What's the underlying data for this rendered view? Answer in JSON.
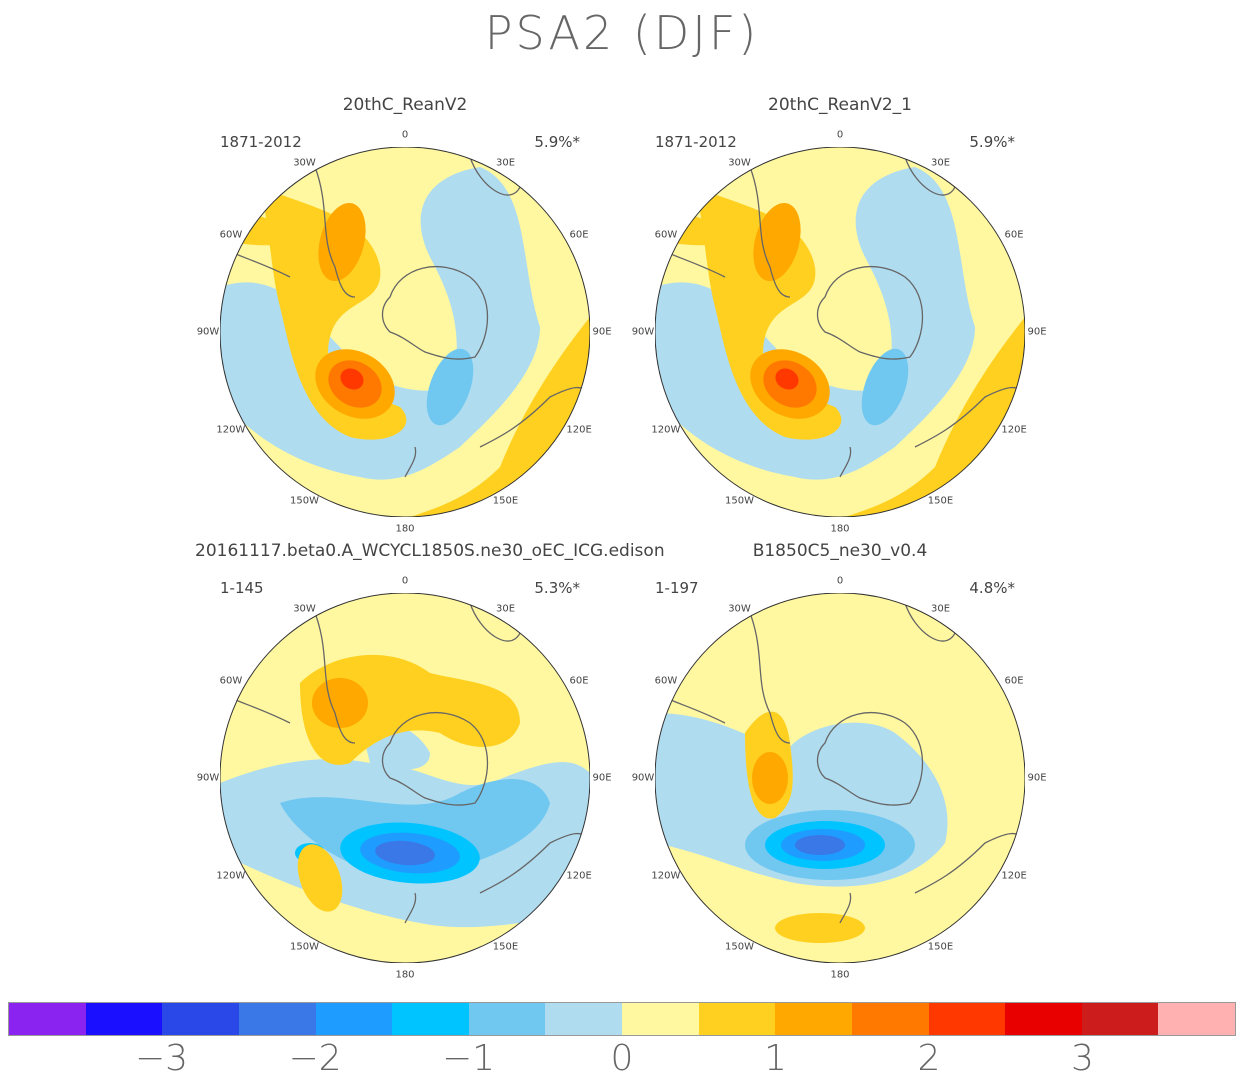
{
  "title": "PSA2 (DJF)",
  "panels": [
    {
      "title": "20thC_ReanV2",
      "range": "1871-2012",
      "pct": "5.9%*",
      "pattern": "obs"
    },
    {
      "title": "20thC_ReanV2_1",
      "range": "1871-2012",
      "pct": "5.9%*",
      "pattern": "obs"
    },
    {
      "title": "20161117.beta0.A_WCYCL1850S.ne30_oEC_ICG.edison",
      "range": "1-145",
      "pct": "5.3%*",
      "pattern": "m1"
    },
    {
      "title": "B1850C5_ne30_v0.4",
      "range": "1-197",
      "pct": "4.8%*",
      "pattern": "m2"
    }
  ],
  "lon_labels": [
    "0",
    "30E",
    "60E",
    "90E",
    "120E",
    "150E",
    "180",
    "150W",
    "120W",
    "90W",
    "60W",
    "30W"
  ],
  "colorbar": {
    "colors": [
      "#8a22f0",
      "#1a10ff",
      "#2a48e8",
      "#3a78e8",
      "#1e9cff",
      "#00c4ff",
      "#70c8f0",
      "#b0dcf0",
      "#fff8a0",
      "#ffd020",
      "#ffa800",
      "#ff7800",
      "#ff3800",
      "#e80000",
      "#cc1c1c",
      "#ffb0b0"
    ],
    "ticks": [
      "−3",
      "−2",
      "−1",
      "0",
      "1",
      "2",
      "3"
    ]
  }
}
